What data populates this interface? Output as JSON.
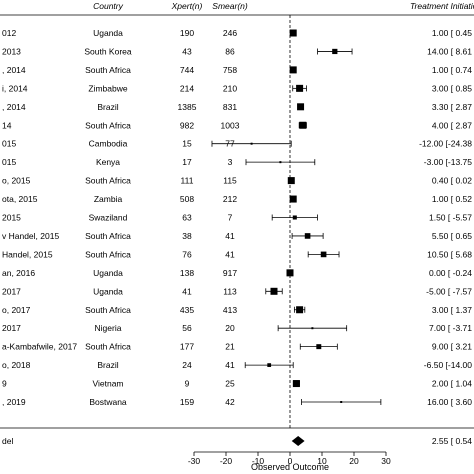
{
  "chart_data": {
    "type": "forest",
    "headers": {
      "country": "Country",
      "xpert": "Xpert(n)",
      "smear": "Smear(n)",
      "effect": "Treatment Initiation Delay (days) ["
    },
    "studies": [
      {
        "label": "012",
        "country": "Uganda",
        "xpert": "190",
        "smear": "246",
        "est": 1.0,
        "lo": 0.45,
        "hi": 1.55,
        "est_text": "1.00 [ 0.45"
      },
      {
        "label": "2013",
        "country": "South Korea",
        "xpert": "43",
        "smear": "86",
        "est": 14.0,
        "lo": 8.61,
        "hi": 19.39,
        "est_text": "14.00 [ 8.61"
      },
      {
        "label": ", 2014",
        "country": "South Africa",
        "xpert": "744",
        "smear": "758",
        "est": 1.0,
        "lo": 0.74,
        "hi": 1.26,
        "est_text": "1.00 [ 0.74"
      },
      {
        "label": "i, 2014",
        "country": "Zimbabwe",
        "xpert": "214",
        "smear": "210",
        "est": 3.0,
        "lo": 0.85,
        "hi": 5.15,
        "est_text": "3.00 [ 0.85"
      },
      {
        "label": ", 2014",
        "country": "Brazil",
        "xpert": "1385",
        "smear": "831",
        "est": 3.3,
        "lo": 2.87,
        "hi": 3.73,
        "est_text": "3.30 [ 2.87"
      },
      {
        "label": "14",
        "country": "South Africa",
        "xpert": "982",
        "smear": "1003",
        "est": 4.0,
        "lo": 2.87,
        "hi": 5.13,
        "est_text": "4.00 [ 2.87"
      },
      {
        "label": "015",
        "country": "Cambodia",
        "xpert": "15",
        "smear": "77",
        "est": -12.0,
        "lo": -24.38,
        "hi": 0.38,
        "est_text": "-12.00 [-24.38"
      },
      {
        "label": "015",
        "country": "Kenya",
        "xpert": "17",
        "smear": "3",
        "est": -3.0,
        "lo": -13.75,
        "hi": 7.75,
        "est_text": "-3.00 [-13.75"
      },
      {
        "label": "o, 2015",
        "country": "South Africa",
        "xpert": "111",
        "smear": "115",
        "est": 0.4,
        "lo": 0.02,
        "hi": 0.78,
        "est_text": "0.40 [ 0.02"
      },
      {
        "label": "ota, 2015",
        "country": "Zambia",
        "xpert": "508",
        "smear": "212",
        "est": 1.0,
        "lo": 0.52,
        "hi": 1.48,
        "est_text": "1.00 [ 0.52"
      },
      {
        "label": "2015",
        "country": "Swaziland",
        "xpert": "63",
        "smear": "7",
        "est": 1.5,
        "lo": -5.57,
        "hi": 8.57,
        "est_text": "1.50 [ -5.57"
      },
      {
        "label": "v Handel, 2015",
        "country": "South Africa",
        "xpert": "38",
        "smear": "41",
        "est": 5.5,
        "lo": 0.65,
        "hi": 10.35,
        "est_text": "5.50 [ 0.65"
      },
      {
        "label": "Handel, 2015",
        "country": "South Africa",
        "xpert": "76",
        "smear": "41",
        "est": 10.5,
        "lo": 5.68,
        "hi": 15.32,
        "est_text": "10.50 [ 5.68"
      },
      {
        "label": "an, 2016",
        "country": "Uganda",
        "xpert": "138",
        "smear": "917",
        "est": 0.0,
        "lo": -0.24,
        "hi": 0.24,
        "est_text": "0.00 [ -0.24"
      },
      {
        "label": "2017",
        "country": "Uganda",
        "xpert": "41",
        "smear": "113",
        "est": -5.0,
        "lo": -7.57,
        "hi": -2.43,
        "est_text": "-5.00 [ -7.57"
      },
      {
        "label": "o, 2017",
        "country": "South Africa",
        "xpert": "435",
        "smear": "413",
        "est": 3.0,
        "lo": 1.37,
        "hi": 4.63,
        "est_text": "3.00 [ 1.37"
      },
      {
        "label": "2017",
        "country": "Nigeria",
        "xpert": "56",
        "smear": "20",
        "est": 7.0,
        "lo": -3.71,
        "hi": 17.71,
        "est_text": "7.00 [ -3.71"
      },
      {
        "label": "a-Kambafwile, 2017",
        "country": "South Africa",
        "xpert": "177",
        "smear": "21",
        "est": 9.0,
        "lo": 3.21,
        "hi": 14.79,
        "est_text": "9.00 [ 3.21"
      },
      {
        "label": "o, 2018",
        "country": "Brazil",
        "xpert": "24",
        "smear": "41",
        "est": -6.5,
        "lo": -14.0,
        "hi": 1.0,
        "est_text": "-6.50 [-14.00"
      },
      {
        "label": "9",
        "country": "Vietnam",
        "xpert": "9",
        "smear": "25",
        "est": 2.0,
        "lo": 1.04,
        "hi": 2.96,
        "est_text": "2.00 [ 1.04"
      },
      {
        "label": ", 2019",
        "country": "Bostwana",
        "xpert": "159",
        "smear": "42",
        "est": 16.0,
        "lo": 3.6,
        "hi": 28.4,
        "est_text": "16.00 [ 3.60"
      }
    ],
    "summary": {
      "label": "del",
      "est": 2.55,
      "lo": 0.54,
      "hi": 4.56,
      "est_text": "2.55 [ 0.54"
    },
    "xlabel": "Observed Outcome",
    "xticks": [
      -30,
      -20,
      -10,
      0,
      10,
      20,
      30
    ],
    "xlim": [
      -30,
      30
    ],
    "reference_line": 0
  }
}
